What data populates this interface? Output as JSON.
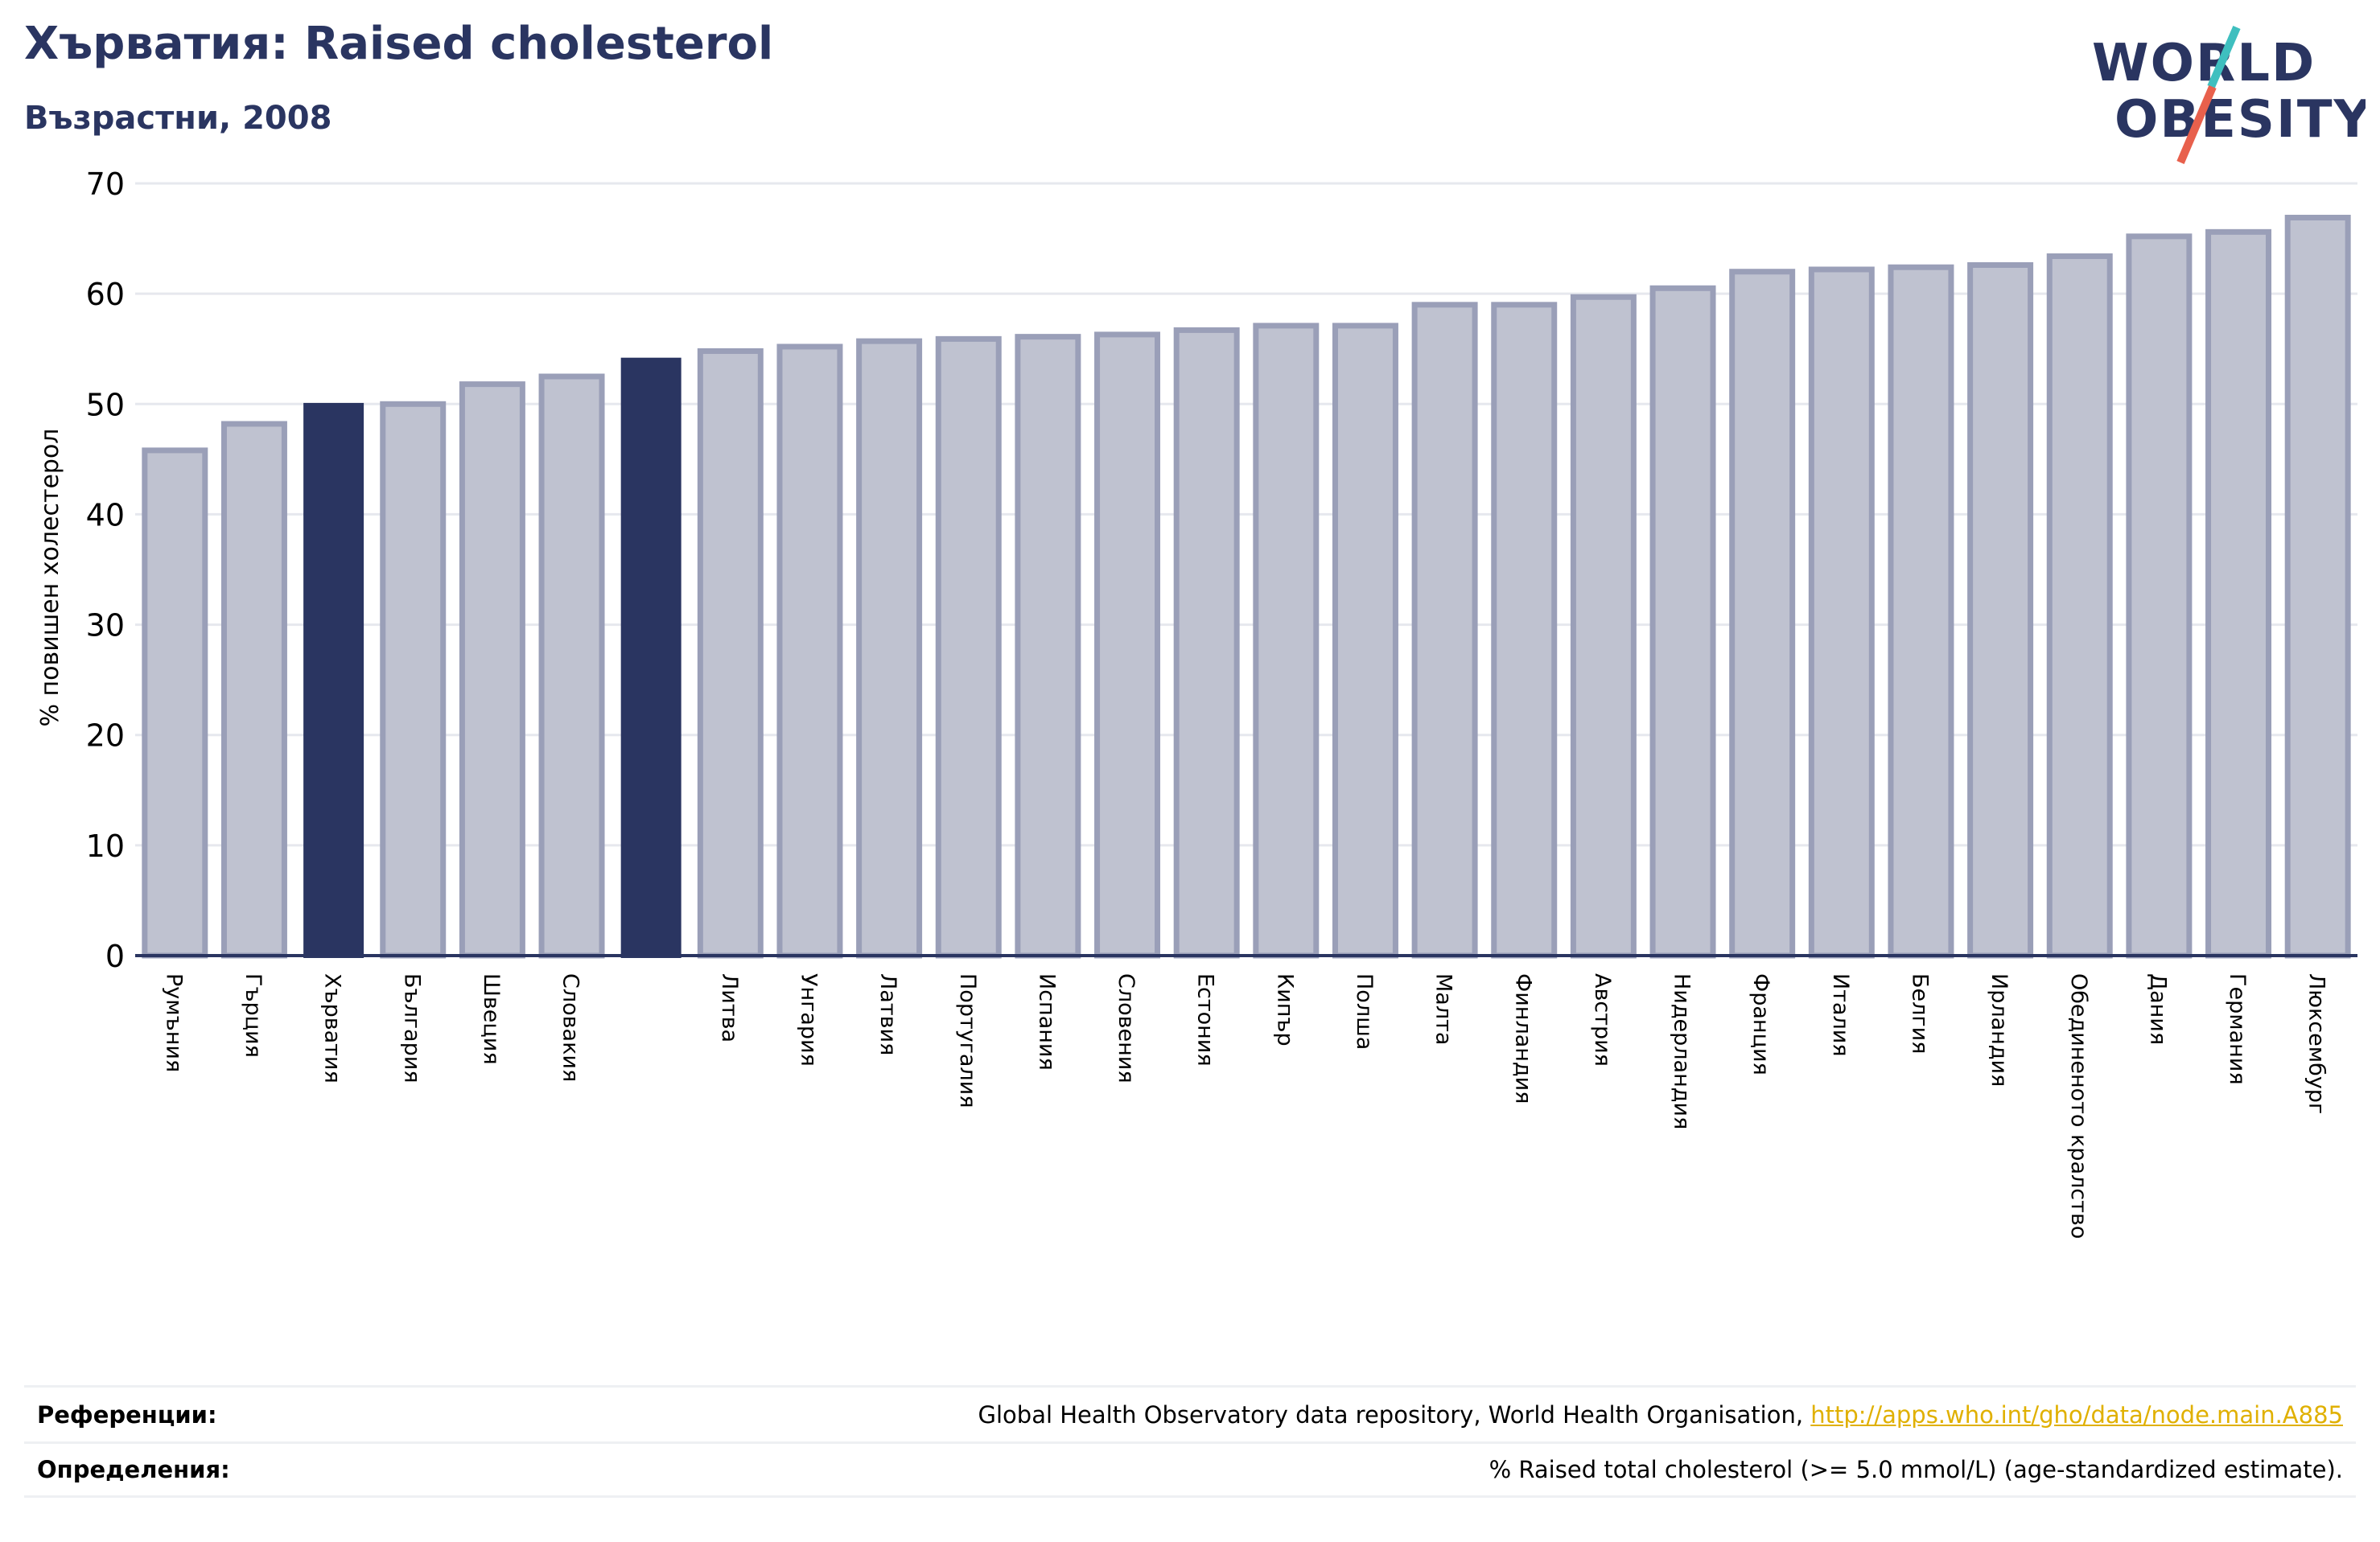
{
  "header": {
    "title": "Хърватия: Raised cholesterol",
    "subtitle": "Възрастни, 2008"
  },
  "logo": {
    "line1": "WORLD",
    "line2": "OBESITY"
  },
  "colors": {
    "highlight": "#2a3561",
    "bar_fill": "#bfc2d0",
    "bar_stroke": "#9a9fb8",
    "grid": "#e6e8ee",
    "logo_teal": "#3fbfbf",
    "logo_red": "#e8604c"
  },
  "chart_data": {
    "type": "bar",
    "title": "Хърватия: Raised cholesterol",
    "subtitle": "Възрастни, 2008",
    "ylabel": "% повишен холестерол",
    "xlabel": "",
    "ylim": [
      0,
      70
    ],
    "yticks": [
      0,
      10,
      20,
      30,
      40,
      50,
      60,
      70
    ],
    "grid": true,
    "categories": [
      "Румъния",
      "Гърция",
      "Хърватия",
      "България",
      "Швеция",
      "Словакия",
      "",
      "Литва",
      "Унгария",
      "Латвия",
      "Португалия",
      "Испания",
      "Словения",
      "Естония",
      "Кипър",
      "Полша",
      "Малта",
      "Финландия",
      "Австрия",
      "Нидерландия",
      "Франция",
      "Италия",
      "Белгия",
      "Ирландия",
      "Обединеното кралство",
      "Дания",
      "Германия",
      "Люксембург"
    ],
    "values": [
      45.8,
      48.2,
      50.1,
      50.0,
      51.8,
      52.5,
      54.2,
      54.8,
      55.2,
      55.7,
      55.9,
      56.1,
      56.3,
      56.7,
      57.1,
      57.1,
      59.0,
      59.0,
      59.7,
      60.5,
      62.0,
      62.2,
      62.4,
      62.6,
      63.4,
      65.2,
      65.6,
      66.9
    ],
    "highlight": [
      false,
      false,
      true,
      false,
      false,
      false,
      true,
      false,
      false,
      false,
      false,
      false,
      false,
      false,
      false,
      false,
      false,
      false,
      false,
      false,
      false,
      false,
      false,
      false,
      false,
      false,
      false,
      false
    ]
  },
  "references": [
    {
      "label": "Референции:",
      "text": "Global Health Observatory data repository, World Health Organisation, ",
      "link": "http://apps.who.int/gho/data/node.main.A885"
    },
    {
      "label": "Определения:",
      "text": "% Raised total cholesterol (>= 5.0 mmol/L) (age-standardized estimate).",
      "link": ""
    }
  ]
}
